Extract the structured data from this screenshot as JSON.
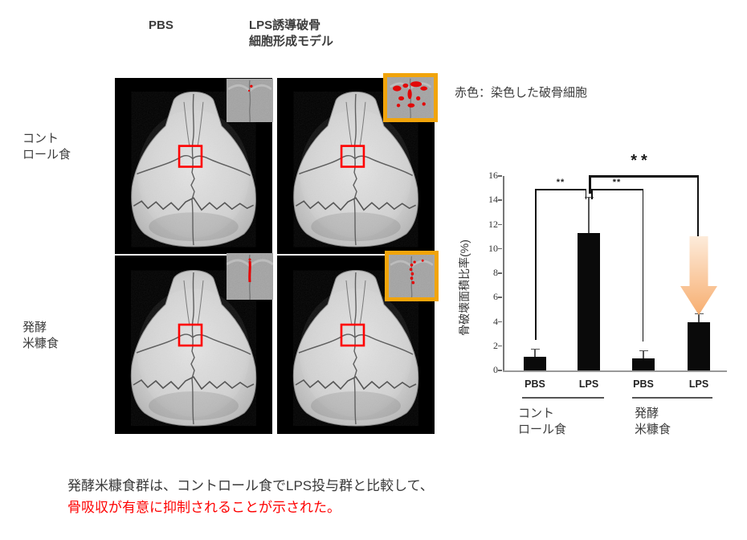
{
  "header": {
    "pbs_label": "PBS",
    "lps_label": "LPS誘導破骨\n細胞形成モデル"
  },
  "row_labels": [
    {
      "label": "コント\nロール食"
    },
    {
      "label": "発酵\n米糠食"
    }
  ],
  "legend_note": "赤色：染色した破骨細胞",
  "chart_data": {
    "type": "bar",
    "categories": [
      "PBS",
      "LPS",
      "PBS",
      "LPS"
    ],
    "values": [
      1.1,
      11.3,
      1.0,
      4.0
    ],
    "errors_upper": [
      0.6,
      2.9,
      0.6,
      0.6
    ],
    "groups": [
      {
        "label": "コント\nロール食",
        "bars": [
          0,
          1
        ]
      },
      {
        "label": "発酵\n米糠食",
        "bars": [
          2,
          3
        ]
      }
    ],
    "ylabel": "骨破壊面積比率(%)",
    "ylim": [
      0,
      16
    ],
    "yticks": [
      0,
      2,
      4,
      6,
      8,
      10,
      12,
      14,
      16
    ],
    "grid": false,
    "bar_color": "#0a0a0a",
    "significance": [
      {
        "label": "**",
        "between": [
          "control-PBS",
          "control-LPS"
        ]
      },
      {
        "label": "**",
        "between": [
          "control-LPS",
          "ricebran-PBS"
        ]
      },
      {
        "label": "**",
        "between": [
          "control-LPS",
          "ricebran-LPS"
        ]
      }
    ]
  },
  "colors": {
    "roi_box": "#ff0000",
    "inset_border": "#F1A40B",
    "stain_red": "#e60000",
    "arrow_gradient_top": "#FDEBDA",
    "arrow_gradient_bottom": "#F7AE70",
    "caption_highlight": "#fe0000"
  },
  "caption": {
    "line1": "発酵米糠食群は、コントロール食でLPS投与群と比較して、",
    "line2": "骨吸収が有意に抑制されることが示された。"
  }
}
